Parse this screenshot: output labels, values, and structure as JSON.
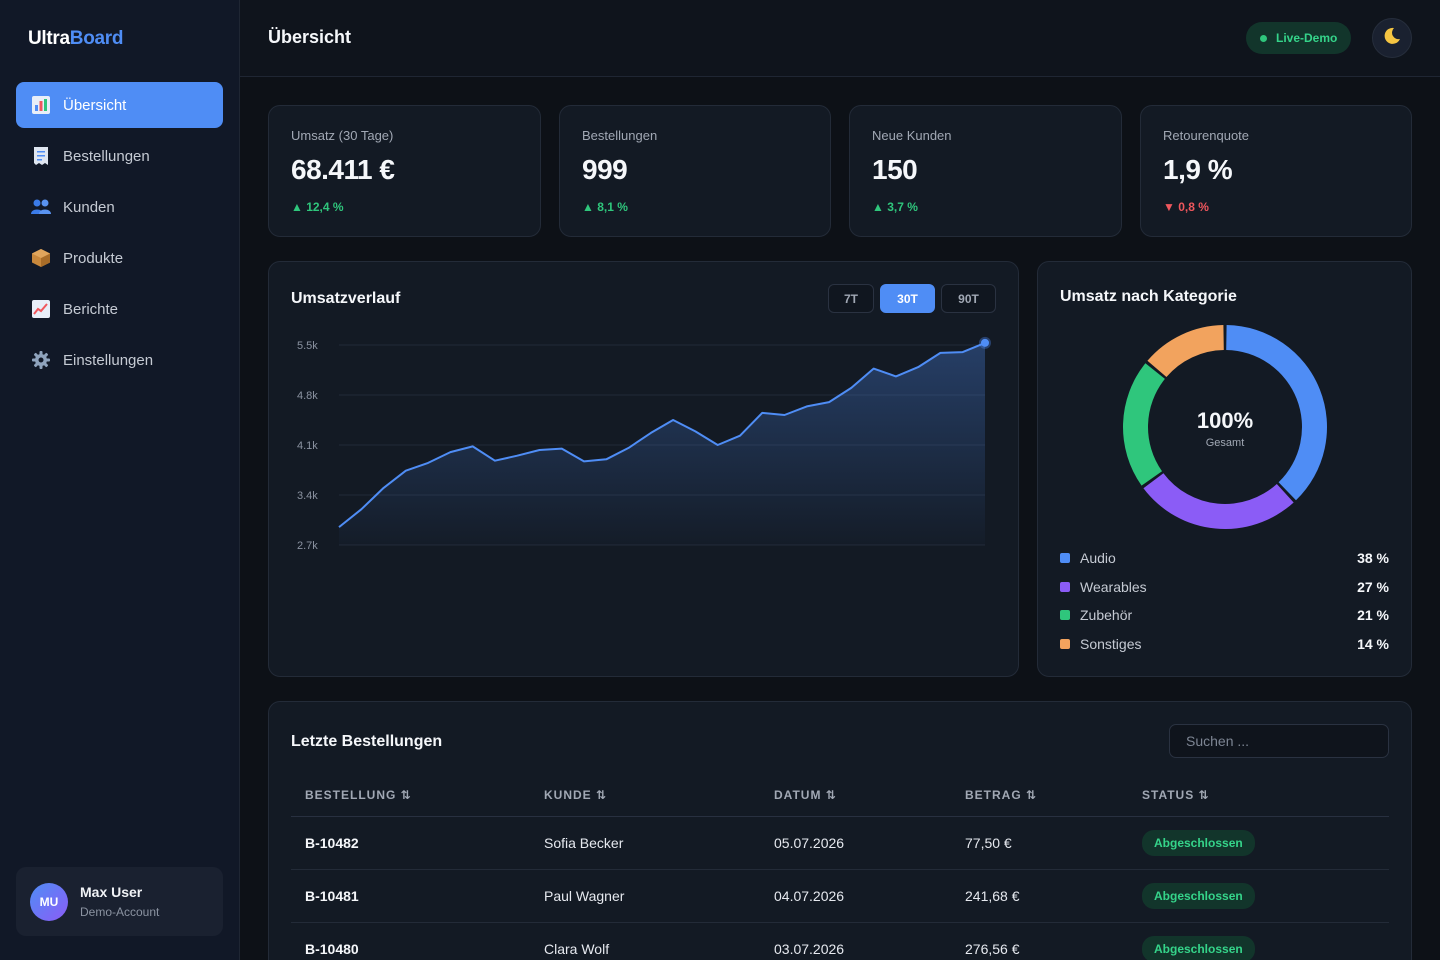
{
  "brand": {
    "part1": "Ultra",
    "part2": "Board"
  },
  "sidebar": {
    "items": [
      {
        "label": "Übersicht",
        "icon": "bar-chart-icon",
        "active": true
      },
      {
        "label": "Bestellungen",
        "icon": "receipt-icon",
        "active": false
      },
      {
        "label": "Kunden",
        "icon": "users-icon",
        "active": false
      },
      {
        "label": "Produkte",
        "icon": "package-icon",
        "active": false
      },
      {
        "label": "Berichte",
        "icon": "trend-chart-icon",
        "active": false
      },
      {
        "label": "Einstellungen",
        "icon": "gear-icon",
        "active": false
      }
    ],
    "user": {
      "initials": "MU",
      "name": "Max User",
      "role": "Demo-Account"
    }
  },
  "header": {
    "title": "Übersicht",
    "live_badge": "Live-Demo",
    "theme_icon": "moon-icon"
  },
  "kpis": [
    {
      "label": "Umsatz (30 Tage)",
      "value": "68.411 €",
      "delta": "▲ 12,4 %",
      "trend": "up"
    },
    {
      "label": "Bestellungen",
      "value": "999",
      "delta": "▲ 8,1 %",
      "trend": "up"
    },
    {
      "label": "Neue Kunden",
      "value": "150",
      "delta": "▲ 3,7 %",
      "trend": "up"
    },
    {
      "label": "Retourenquote",
      "value": "1,9 %",
      "delta": "▼ 0,8 %",
      "trend": "down"
    }
  ],
  "revenue_card": {
    "title": "Umsatzverlauf",
    "ranges": [
      "7T",
      "30T",
      "90T"
    ],
    "active_range": "30T"
  },
  "category_card": {
    "title": "Umsatz nach Kategorie",
    "center_value": "100%",
    "center_label": "Gesamt",
    "items": [
      {
        "name": "Audio",
        "value": "38 %",
        "color": "#4f8df5"
      },
      {
        "name": "Wearables",
        "value": "27 %",
        "color": "#8b5cf6"
      },
      {
        "name": "Zubehör",
        "value": "21 %",
        "color": "#2fc67c"
      },
      {
        "name": "Sonstiges",
        "value": "14 %",
        "color": "#f2a35e"
      }
    ]
  },
  "orders": {
    "title": "Letzte Bestellungen",
    "search_placeholder": "Suchen ...",
    "columns": [
      "BESTELLUNG ⇅",
      "KUNDE ⇅",
      "DATUM ⇅",
      "BETRAG ⇅",
      "STATUS ⇅"
    ],
    "rows": [
      {
        "id": "B-10482",
        "customer": "Sofia Becker",
        "date": "05.07.2026",
        "amount": "77,50 €",
        "status": "Abgeschlossen"
      },
      {
        "id": "B-10481",
        "customer": "Paul Wagner",
        "date": "04.07.2026",
        "amount": "241,68 €",
        "status": "Abgeschlossen"
      },
      {
        "id": "B-10480",
        "customer": "Clara Wolf",
        "date": "03.07.2026",
        "amount": "276,56 €",
        "status": "Abgeschlossen"
      }
    ]
  },
  "colors": {
    "accent": "#4f8df5",
    "success": "#2fc67c",
    "danger": "#f0575d",
    "background": "#0d1117",
    "card": "#131a24"
  },
  "chart_data": [
    {
      "type": "area",
      "yticks": [
        "5.5k",
        "4.8k",
        "4.1k",
        "3.4k",
        "2.7k"
      ],
      "ylim": [
        2700,
        5500
      ],
      "x": [
        1,
        2,
        3,
        4,
        5,
        6,
        7,
        8,
        9,
        10,
        11,
        12,
        13,
        14,
        15,
        16,
        17,
        18,
        19,
        20,
        21,
        22,
        23,
        24,
        25,
        26,
        27,
        28,
        29,
        30
      ],
      "series": [
        {
          "values": [
            2950,
            3200,
            3500,
            3740,
            3850,
            4000,
            4080,
            3880,
            3950,
            4030,
            4050,
            3870,
            3900,
            4060,
            4270,
            4450,
            4290,
            4100,
            4230,
            4550,
            4520,
            4640,
            4700,
            4900,
            5170,
            5060,
            5190,
            5390,
            5400,
            5530
          ]
        }
      ]
    },
    {
      "type": "pie",
      "categories": [
        "Audio",
        "Wearables",
        "Zubehör",
        "Sonstiges"
      ],
      "values": [
        38,
        27,
        21,
        14
      ],
      "center_text": "100%"
    }
  ]
}
